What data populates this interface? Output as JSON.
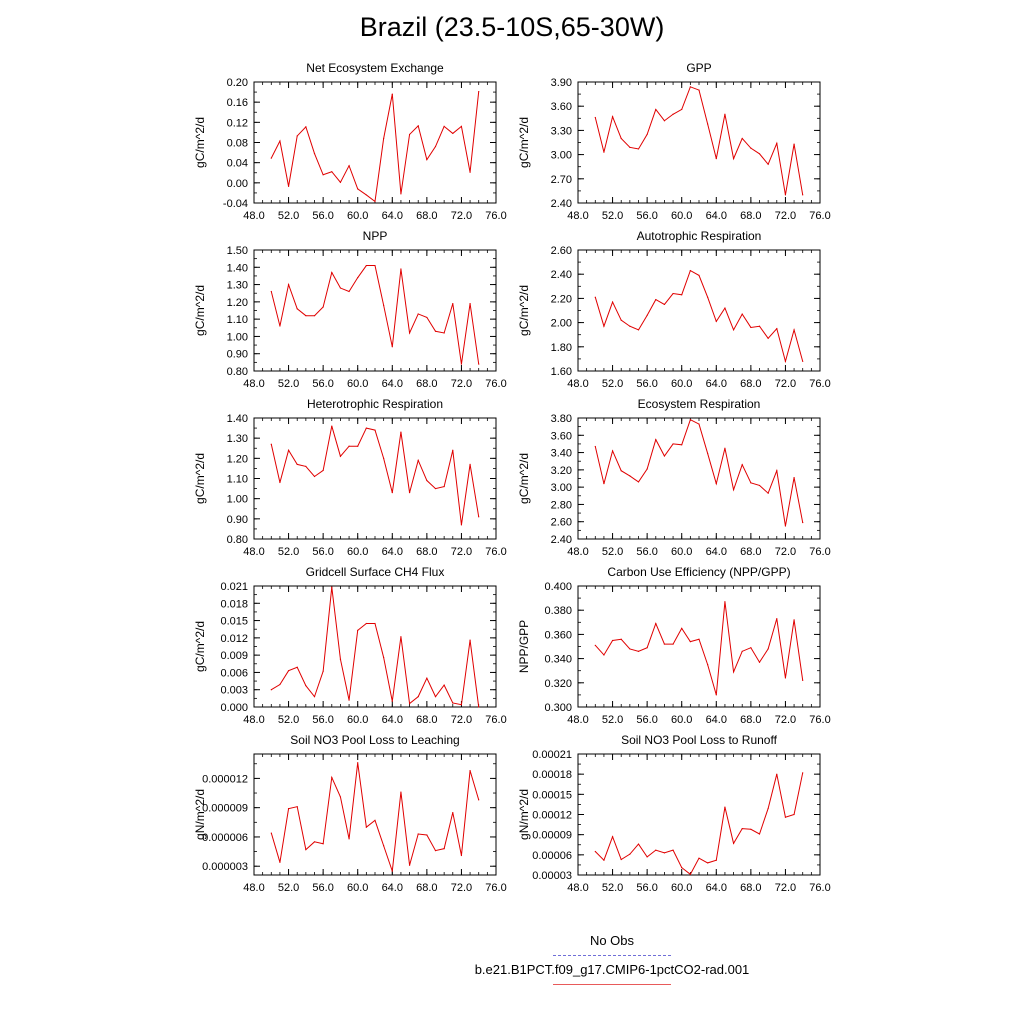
{
  "title": "Brazil (23.5-10S,65-30W)",
  "legend": {
    "obs_label": "No Obs",
    "model_label": "b.e21.B1PCT.f09_g17.CMIP6-1pctCO2-rad.001",
    "obs_color": "#6f6fd8",
    "model_color": "#e00000"
  },
  "chart_data": [
    {
      "type": "line",
      "title": "Net Ecosystem Exchange",
      "ylabel": "gC/m^2/d",
      "xlim": [
        48,
        76
      ],
      "ylim": [
        -0.04,
        0.2
      ],
      "xticks": [
        48,
        52,
        56,
        60,
        64,
        68,
        72,
        76
      ],
      "xtick_labels": [
        "48.0",
        "52.0",
        "56.0",
        "60.0",
        "64.0",
        "68.0",
        "72.0",
        "76.0"
      ],
      "yticks": [
        -0.04,
        0.0,
        0.04,
        0.08,
        0.12,
        0.16,
        0.2
      ],
      "ytick_labels": [
        "-0.04",
        "0.00",
        "0.04",
        "0.08",
        "0.12",
        "0.16",
        "0.20"
      ],
      "x": [
        50,
        51,
        52,
        53,
        54,
        55,
        56,
        57,
        58,
        59,
        60,
        61,
        62,
        63,
        64,
        65,
        66,
        67,
        68,
        69,
        70,
        71,
        72,
        73,
        74
      ],
      "y": [
        0.049,
        0.083,
        -0.007,
        0.093,
        0.111,
        0.058,
        0.016,
        0.022,
        0.001,
        0.034,
        -0.012,
        -0.024,
        -0.037,
        0.088,
        0.176,
        -0.022,
        0.096,
        0.113,
        0.046,
        0.072,
        0.112,
        0.098,
        0.112,
        0.021,
        0.181
      ]
    },
    {
      "type": "line",
      "title": "GPP",
      "ylabel": "gC/m^2/d",
      "xlim": [
        48,
        76
      ],
      "ylim": [
        2.4,
        3.9
      ],
      "xticks": [
        48,
        52,
        56,
        60,
        64,
        68,
        72,
        76
      ],
      "xtick_labels": [
        "48.0",
        "52.0",
        "56.0",
        "60.0",
        "64.0",
        "68.0",
        "72.0",
        "76.0"
      ],
      "yticks": [
        2.4,
        2.7,
        3.0,
        3.3,
        3.6,
        3.9
      ],
      "ytick_labels": [
        "2.40",
        "2.70",
        "3.00",
        "3.30",
        "3.60",
        "3.90"
      ],
      "x": [
        50,
        51,
        52,
        53,
        54,
        55,
        56,
        57,
        58,
        59,
        60,
        61,
        62,
        63,
        64,
        65,
        66,
        67,
        68,
        69,
        70,
        71,
        72,
        73,
        74
      ],
      "y": [
        3.46,
        3.03,
        3.47,
        3.2,
        3.09,
        3.07,
        3.25,
        3.56,
        3.42,
        3.5,
        3.56,
        3.84,
        3.8,
        3.38,
        2.95,
        3.5,
        2.95,
        3.2,
        3.08,
        3.01,
        2.88,
        3.14,
        2.5,
        3.13,
        2.5
      ]
    },
    {
      "type": "line",
      "title": "NPP",
      "ylabel": "gC/m^2/d",
      "xlim": [
        48,
        76
      ],
      "ylim": [
        0.8,
        1.5
      ],
      "xticks": [
        48,
        52,
        56,
        60,
        64,
        68,
        72,
        76
      ],
      "xtick_labels": [
        "48.0",
        "52.0",
        "56.0",
        "60.0",
        "64.0",
        "68.0",
        "72.0",
        "76.0"
      ],
      "yticks": [
        0.8,
        0.9,
        1.0,
        1.1,
        1.2,
        1.3,
        1.4,
        1.5
      ],
      "ytick_labels": [
        "0.80",
        "0.90",
        "1.00",
        "1.10",
        "1.20",
        "1.30",
        "1.40",
        "1.50"
      ],
      "x": [
        50,
        51,
        52,
        53,
        54,
        55,
        56,
        57,
        58,
        59,
        60,
        61,
        62,
        63,
        64,
        65,
        66,
        67,
        68,
        69,
        70,
        71,
        72,
        73,
        74
      ],
      "y": [
        1.26,
        1.06,
        1.3,
        1.16,
        1.12,
        1.12,
        1.17,
        1.37,
        1.28,
        1.26,
        1.34,
        1.41,
        1.41,
        1.18,
        0.94,
        1.39,
        1.02,
        1.13,
        1.11,
        1.03,
        1.02,
        1.19,
        0.84,
        1.19,
        0.84
      ]
    },
    {
      "type": "line",
      "title": "Autotrophic Respiration",
      "ylabel": "gC/m^2/d",
      "xlim": [
        48,
        76
      ],
      "ylim": [
        1.6,
        2.6
      ],
      "xticks": [
        48,
        52,
        56,
        60,
        64,
        68,
        72,
        76
      ],
      "xtick_labels": [
        "48.0",
        "52.0",
        "56.0",
        "60.0",
        "64.0",
        "68.0",
        "72.0",
        "76.0"
      ],
      "yticks": [
        1.6,
        1.8,
        2.0,
        2.2,
        2.4,
        2.6
      ],
      "ytick_labels": [
        "1.60",
        "1.80",
        "2.00",
        "2.20",
        "2.40",
        "2.60"
      ],
      "x": [
        50,
        51,
        52,
        53,
        54,
        55,
        56,
        57,
        58,
        59,
        60,
        61,
        62,
        63,
        64,
        65,
        66,
        67,
        68,
        69,
        70,
        71,
        72,
        73,
        74
      ],
      "y": [
        2.21,
        1.97,
        2.17,
        2.02,
        1.97,
        1.94,
        2.06,
        2.19,
        2.15,
        2.24,
        2.23,
        2.43,
        2.39,
        2.21,
        2.01,
        2.12,
        1.94,
        2.07,
        1.96,
        1.97,
        1.87,
        1.95,
        1.68,
        1.94,
        1.68
      ]
    },
    {
      "type": "line",
      "title": "Heterotrophic Respiration",
      "ylabel": "gC/m^2/d",
      "xlim": [
        48,
        76
      ],
      "ylim": [
        0.8,
        1.4
      ],
      "xticks": [
        48,
        52,
        56,
        60,
        64,
        68,
        72,
        76
      ],
      "xtick_labels": [
        "48.0",
        "52.0",
        "56.0",
        "60.0",
        "64.0",
        "68.0",
        "72.0",
        "76.0"
      ],
      "yticks": [
        0.8,
        0.9,
        1.0,
        1.1,
        1.2,
        1.3,
        1.4
      ],
      "ytick_labels": [
        "0.80",
        "0.90",
        "1.00",
        "1.10",
        "1.20",
        "1.30",
        "1.40"
      ],
      "x": [
        50,
        51,
        52,
        53,
        54,
        55,
        56,
        57,
        58,
        59,
        60,
        61,
        62,
        63,
        64,
        65,
        66,
        67,
        68,
        69,
        70,
        71,
        72,
        73,
        74
      ],
      "y": [
        1.27,
        1.08,
        1.24,
        1.17,
        1.16,
        1.11,
        1.14,
        1.36,
        1.21,
        1.26,
        1.26,
        1.35,
        1.34,
        1.2,
        1.03,
        1.33,
        1.03,
        1.19,
        1.09,
        1.05,
        1.06,
        1.24,
        0.87,
        1.17,
        0.91
      ]
    },
    {
      "type": "line",
      "title": "Ecosystem Respiration",
      "ylabel": "gC/m^2/d",
      "xlim": [
        48,
        76
      ],
      "ylim": [
        2.4,
        3.8
      ],
      "xticks": [
        48,
        52,
        56,
        60,
        64,
        68,
        72,
        76
      ],
      "xtick_labels": [
        "48.0",
        "52.0",
        "56.0",
        "60.0",
        "64.0",
        "68.0",
        "72.0",
        "76.0"
      ],
      "yticks": [
        2.4,
        2.6,
        2.8,
        3.0,
        3.2,
        3.4,
        3.6,
        3.8
      ],
      "ytick_labels": [
        "2.40",
        "2.60",
        "2.80",
        "3.00",
        "3.20",
        "3.40",
        "3.60",
        "3.80"
      ],
      "x": [
        50,
        51,
        52,
        53,
        54,
        55,
        56,
        57,
        58,
        59,
        60,
        61,
        62,
        63,
        64,
        65,
        66,
        67,
        68,
        69,
        70,
        71,
        72,
        73,
        74
      ],
      "y": [
        3.47,
        3.04,
        3.42,
        3.19,
        3.13,
        3.06,
        3.21,
        3.55,
        3.36,
        3.5,
        3.49,
        3.78,
        3.73,
        3.39,
        3.04,
        3.45,
        2.97,
        3.26,
        3.05,
        3.02,
        2.93,
        3.19,
        2.55,
        3.11,
        2.59
      ]
    },
    {
      "type": "line",
      "title": "Gridcell Surface CH4 Flux",
      "ylabel": "gC/m^2/d",
      "xlim": [
        48,
        76
      ],
      "ylim": [
        0.0,
        0.021
      ],
      "xticks": [
        48,
        52,
        56,
        60,
        64,
        68,
        72,
        76
      ],
      "xtick_labels": [
        "48.0",
        "52.0",
        "56.0",
        "60.0",
        "64.0",
        "68.0",
        "72.0",
        "76.0"
      ],
      "yticks": [
        0.0,
        0.003,
        0.006,
        0.009,
        0.012,
        0.015,
        0.018,
        0.021
      ],
      "ytick_labels": [
        "0.000",
        "0.003",
        "0.006",
        "0.009",
        "0.012",
        "0.015",
        "0.018",
        "0.021"
      ],
      "x": [
        50,
        51,
        52,
        53,
        54,
        55,
        56,
        57,
        58,
        59,
        60,
        61,
        62,
        63,
        64,
        65,
        66,
        67,
        68,
        69,
        70,
        71,
        72,
        73,
        74
      ],
      "y": [
        0.003,
        0.0039,
        0.0063,
        0.0069,
        0.0037,
        0.0018,
        0.0062,
        0.0208,
        0.0083,
        0.0012,
        0.0133,
        0.0145,
        0.0145,
        0.0086,
        0.001,
        0.0122,
        0.0006,
        0.0018,
        0.005,
        0.0018,
        0.0038,
        0.0007,
        0.0004,
        0.0116,
        0.0
      ]
    },
    {
      "type": "line",
      "title": "Carbon Use Efficiency (NPP/GPP)",
      "ylabel": "NPP/GPP",
      "xlim": [
        48,
        76
      ],
      "ylim": [
        0.3,
        0.4
      ],
      "xticks": [
        48,
        52,
        56,
        60,
        64,
        68,
        72,
        76
      ],
      "xtick_labels": [
        "48.0",
        "52.0",
        "56.0",
        "60.0",
        "64.0",
        "68.0",
        "72.0",
        "76.0"
      ],
      "yticks": [
        0.3,
        0.32,
        0.34,
        0.36,
        0.38,
        0.4
      ],
      "ytick_labels": [
        "0.300",
        "0.320",
        "0.340",
        "0.360",
        "0.380",
        "0.400"
      ],
      "x": [
        50,
        51,
        52,
        53,
        54,
        55,
        56,
        57,
        58,
        59,
        60,
        61,
        62,
        63,
        64,
        65,
        66,
        67,
        68,
        69,
        70,
        71,
        72,
        73,
        74
      ],
      "y": [
        0.351,
        0.343,
        0.355,
        0.356,
        0.348,
        0.346,
        0.349,
        0.369,
        0.352,
        0.352,
        0.365,
        0.354,
        0.356,
        0.335,
        0.31,
        0.387,
        0.329,
        0.346,
        0.349,
        0.337,
        0.348,
        0.373,
        0.324,
        0.372,
        0.322
      ]
    },
    {
      "type": "line",
      "title": "Soil NO3 Pool Loss to Leaching",
      "ylabel": "gN/m^2/d",
      "xlim": [
        48,
        76
      ],
      "ylim": [
        2.1e-06,
        1.45e-05
      ],
      "xticks": [
        48,
        52,
        56,
        60,
        64,
        68,
        72,
        76
      ],
      "xtick_labels": [
        "48.0",
        "52.0",
        "56.0",
        "60.0",
        "64.0",
        "68.0",
        "72.0",
        "76.0"
      ],
      "yticks": [
        3e-06,
        6e-06,
        9e-06,
        1.2e-05
      ],
      "ytick_labels": [
        "0.000003",
        "0.000006",
        "0.000009",
        "0.000012"
      ],
      "x": [
        50,
        51,
        52,
        53,
        54,
        55,
        56,
        57,
        58,
        59,
        60,
        61,
        62,
        63,
        64,
        65,
        66,
        67,
        68,
        69,
        70,
        71,
        72,
        73,
        74
      ],
      "y": [
        6.4e-06,
        3.4e-06,
        8.9e-06,
        9.1e-06,
        4.7e-06,
        5.5e-06,
        5.3e-06,
        1.21e-05,
        1.01e-05,
        5.8e-06,
        1.36e-05,
        7e-06,
        7.7e-06,
        5.1e-06,
        2.5e-06,
        1.06e-05,
        3.1e-06,
        6.3e-06,
        6.2e-06,
        4.6e-06,
        4.8e-06,
        8.5e-06,
        4.1e-06,
        1.28e-05,
        9.8e-06
      ]
    },
    {
      "type": "line",
      "title": "Soil NO3 Pool Loss to Runoff",
      "ylabel": "gN/m^2/d",
      "xlim": [
        48,
        76
      ],
      "ylim": [
        3e-05,
        0.00021
      ],
      "xticks": [
        48,
        52,
        56,
        60,
        64,
        68,
        72,
        76
      ],
      "xtick_labels": [
        "48.0",
        "52.0",
        "56.0",
        "60.0",
        "64.0",
        "68.0",
        "72.0",
        "76.0"
      ],
      "yticks": [
        3e-05,
        6e-05,
        9e-05,
        0.00012,
        0.00015,
        0.00018,
        0.00021
      ],
      "ytick_labels": [
        "0.00003",
        "0.00006",
        "0.00009",
        "0.00012",
        "0.00015",
        "0.00018",
        "0.00021"
      ],
      "x": [
        50,
        51,
        52,
        53,
        54,
        55,
        56,
        57,
        58,
        59,
        60,
        61,
        62,
        63,
        64,
        65,
        66,
        67,
        68,
        69,
        70,
        71,
        72,
        73,
        74
      ],
      "y": [
        6.5e-05,
        5.2e-05,
        8.7e-05,
        5.3e-05,
        6.1e-05,
        7.6e-05,
        5.7e-05,
        6.7e-05,
        6.3e-05,
        6.7e-05,
        4.1e-05,
        3.1e-05,
        5.5e-05,
        4.8e-05,
        5.2e-05,
        0.000131,
        7.7e-05,
        9.9e-05,
        9.8e-05,
        9.1e-05,
        0.000129,
        0.00018,
        0.000116,
        0.00012,
        0.000182
      ]
    }
  ]
}
